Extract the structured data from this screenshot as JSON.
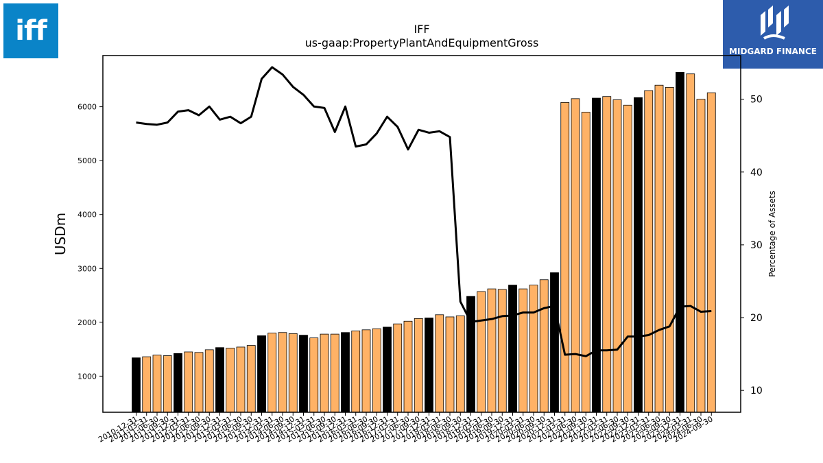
{
  "logos": {
    "left_text": "iff",
    "right_text": "MIDGARD FINANCE"
  },
  "chart_data": {
    "type": "bar",
    "title": "IFF",
    "subtitle": "us-gaap:PropertyPlantAndEquipmentGross",
    "ylabel": "USDm",
    "y2label": "Percentage of Assets",
    "ylim": [
      330,
      6950
    ],
    "y2lim": [
      7,
      56
    ],
    "yticks": [
      1000,
      2000,
      3000,
      4000,
      5000,
      6000
    ],
    "y2ticks": [
      10,
      20,
      30,
      40,
      50
    ],
    "grid": false,
    "colors": {
      "annual_bar": "#000000",
      "quarter_bar": "#ffb266",
      "line": "#000000"
    },
    "categories": [
      "2010-12-31",
      "2011-03-31",
      "2011-06-30",
      "2011-09-30",
      "2011-12-31",
      "2012-03-31",
      "2012-06-30",
      "2012-09-30",
      "2012-12-31",
      "2013-03-31",
      "2013-06-30",
      "2013-09-30",
      "2013-12-31",
      "2014-03-31",
      "2014-06-30",
      "2014-09-30",
      "2014-12-31",
      "2015-03-31",
      "2015-06-30",
      "2015-09-30",
      "2015-12-31",
      "2016-03-31",
      "2016-06-30",
      "2016-09-30",
      "2016-12-31",
      "2017-03-31",
      "2017-06-30",
      "2017-09-30",
      "2017-12-31",
      "2018-03-31",
      "2018-06-30",
      "2018-09-30",
      "2018-12-31",
      "2019-03-31",
      "2019-06-30",
      "2019-09-30",
      "2019-12-31",
      "2020-03-31",
      "2020-06-30",
      "2020-09-30",
      "2020-12-31",
      "2021-03-31",
      "2021-06-30",
      "2021-09-30",
      "2021-12-31",
      "2022-03-31",
      "2022-06-30",
      "2022-09-30",
      "2022-12-31",
      "2023-03-31",
      "2023-06-30",
      "2023-09-30",
      "2023-12-31",
      "2024-03-31",
      "2024-06-30",
      "2024-09-30"
    ],
    "annual": [
      true,
      false,
      false,
      false,
      true,
      false,
      false,
      false,
      true,
      false,
      false,
      false,
      true,
      false,
      false,
      false,
      true,
      false,
      false,
      false,
      true,
      false,
      false,
      false,
      true,
      false,
      false,
      false,
      true,
      false,
      false,
      false,
      true,
      false,
      false,
      false,
      true,
      false,
      false,
      false,
      true,
      false,
      false,
      false,
      true,
      false,
      false,
      false,
      true,
      false,
      false,
      false,
      true,
      false,
      false,
      false
    ],
    "series": [
      {
        "name": "",
        "kind": "bar",
        "axis": "left",
        "values": [
          1340,
          1360,
          1390,
          1380,
          1420,
          1450,
          1440,
          1490,
          1530,
          1520,
          1540,
          1570,
          1750,
          1800,
          1810,
          1790,
          1760,
          1710,
          1780,
          1780,
          1810,
          1840,
          1860,
          1880,
          1910,
          1970,
          2020,
          2070,
          2080,
          2140,
          2100,
          2120,
          2480,
          2570,
          2620,
          2610,
          2690,
          2620,
          2690,
          2790,
          2920,
          6080,
          6150,
          5900,
          6160,
          6190,
          6130,
          6030,
          6170,
          6300,
          6400,
          6360,
          6640,
          6610,
          6140,
          6260
        ]
      },
      {
        "name": "",
        "kind": "line",
        "axis": "right",
        "values": [
          46.8,
          46.6,
          46.5,
          46.8,
          48.3,
          48.5,
          47.8,
          49.0,
          47.2,
          47.6,
          46.7,
          47.6,
          52.8,
          54.4,
          53.4,
          51.7,
          50.6,
          49.0,
          48.8,
          45.5,
          49.0,
          43.5,
          43.8,
          45.3,
          47.6,
          46.2,
          43.1,
          45.8,
          45.4,
          45.6,
          44.8,
          22.2,
          19.4,
          19.6,
          19.8,
          20.2,
          20.3,
          20.7,
          20.7,
          21.3,
          21.6,
          14.9,
          15.0,
          14.7,
          15.5,
          15.5,
          15.6,
          17.4,
          17.4,
          17.6,
          18.3,
          18.8,
          21.5,
          21.6,
          20.8,
          20.9
        ]
      }
    ]
  }
}
